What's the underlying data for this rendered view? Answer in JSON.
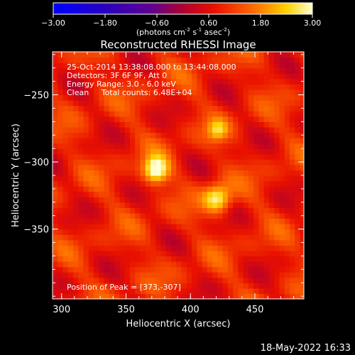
{
  "chart_data": {
    "type": "heatmap",
    "title": "Reconstructed RHESSI Image",
    "xlabel": "Heliocentric X (arcsec)",
    "ylabel": "Heliocentric Y (arcsec)",
    "xlim": [
      293,
      488
    ],
    "ylim": [
      -402,
      -218
    ],
    "x_ticks": [
      300,
      350,
      400,
      450
    ],
    "y_ticks": [
      -250,
      -300,
      -350
    ],
    "colorbar": {
      "min": -3.0,
      "max": 3.0,
      "tick_labels": [
        "-3.00",
        "-1.80",
        "-0.60",
        "0.60",
        "1.80",
        "3.00"
      ],
      "label_prefix": "(photons cm",
      "label_exp1": "-2",
      "label_mid": " s",
      "label_exp2": "-1",
      "label_mid2": " asec",
      "label_exp3": "-2",
      "label_suffix": ")"
    },
    "info_lines": [
      "25-Oct-2014 13:38:08.000 to 13:44:08.000",
      "Detectors: 3F 6F 9F, Att 0",
      "Energy Range: 3.0 - 6.0 keV",
      "Clean     Total counts: 6.48E+04"
    ],
    "peak_text": "Position of Peak = [373,-307]",
    "sources": [
      {
        "x": 373,
        "y": -306,
        "peak": 3.0,
        "sigma": 7
      },
      {
        "x": 421,
        "y": -327,
        "peak": 2.6,
        "sigma": 7.5
      },
      {
        "x": 421,
        "y": -276,
        "peak": 1.8,
        "sigma": 5.5
      }
    ],
    "background_level": 0.9
  },
  "footer_timestamp": "18-May-2022 16:33"
}
